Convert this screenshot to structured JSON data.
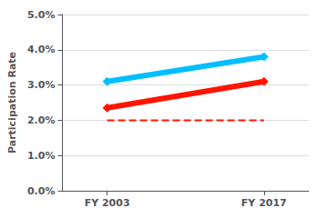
{
  "chart_data": {
    "type": "line",
    "x": [
      2003,
      2017
    ],
    "xlim": [
      1999,
      2021
    ],
    "xticks": [
      {
        "value": 2003,
        "label": "FY 2003"
      },
      {
        "value": 2017,
        "label": "FY 2017"
      }
    ],
    "ylim": [
      0.0,
      5.0
    ],
    "yticks": [
      {
        "value": 0.0,
        "label": "0.0%"
      },
      {
        "value": 1.0,
        "label": "1.0%"
      },
      {
        "value": 2.0,
        "label": "2.0%"
      },
      {
        "value": 3.0,
        "label": "3.0%"
      },
      {
        "value": 4.0,
        "label": "4.0%"
      },
      {
        "value": 5.0,
        "label": "5.0%"
      }
    ],
    "y_label": "Participation Rate",
    "grid": true,
    "series": [
      {
        "color": "#00BFFF",
        "values": [
          3.1,
          3.8
        ],
        "marker": "diamond",
        "line_style": "solid"
      },
      {
        "color": "#FF1500",
        "values": [
          2.35,
          3.1
        ],
        "marker": "diamond",
        "line_style": "solid"
      },
      {
        "color": "#FF1500",
        "values": [
          2.0,
          2.0
        ],
        "marker": "none",
        "line_style": "dashed"
      }
    ]
  }
}
